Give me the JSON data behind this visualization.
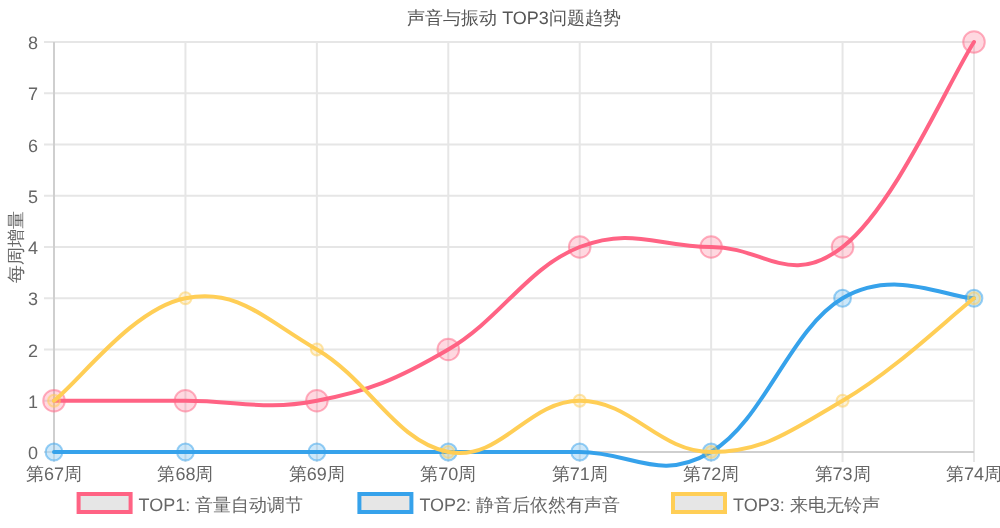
{
  "chart_data": {
    "type": "line",
    "title": "声音与振动 TOP3问题趋势",
    "ylabel": "每周增量",
    "categories": [
      "第67周",
      "第68周",
      "第69周",
      "第70周",
      "第71周",
      "第72周",
      "第73周",
      "第74周"
    ],
    "series": [
      {
        "name": "TOP1: 音量自动调节",
        "color": "#ff6384",
        "values": [
          1,
          1,
          1,
          2,
          4,
          4,
          4,
          8
        ]
      },
      {
        "name": "TOP2: 静音后依然有声音",
        "color": "#36a2eb",
        "values": [
          0,
          0,
          0,
          0,
          0,
          0,
          3,
          3
        ]
      },
      {
        "name": "TOP3: 来电无铃声",
        "color": "#ffce56",
        "values": [
          1,
          3,
          2,
          0,
          1,
          0,
          1,
          3
        ]
      }
    ],
    "ylim": [
      0,
      8
    ],
    "yticks": [
      0,
      1,
      2,
      3,
      4,
      5,
      6,
      7,
      8
    ],
    "grid": true,
    "legend": "bottom",
    "marker": "circle",
    "line_style": "solid"
  }
}
